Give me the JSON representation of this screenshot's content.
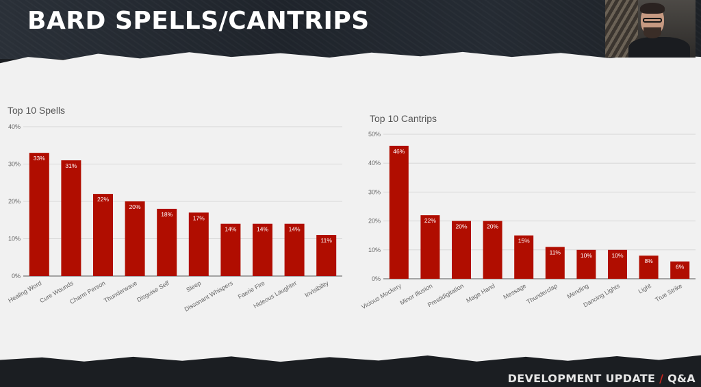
{
  "slide": {
    "title": "BARD SPELLS/CANTRIPS",
    "footer_main": "DEVELOPMENT UPDATE",
    "footer_sep": "/",
    "footer_tail": "Q&A"
  },
  "colors": {
    "bar": "#b00d00",
    "accent": "#c8231c"
  },
  "chart_data": [
    {
      "type": "bar",
      "title": "Top 10 Spells",
      "categories": [
        "Healing Word",
        "Cure Wounds",
        "Charm Person",
        "Thunderwave",
        "Disguise Self",
        "Sleep",
        "Dissonant Whispers",
        "Faerie Fire",
        "Hideous Laughter",
        "Invisibility"
      ],
      "values": [
        33,
        31,
        22,
        20,
        18,
        17,
        14,
        14,
        14,
        11
      ],
      "data_labels": [
        "33%",
        "31%",
        "22%",
        "20%",
        "18%",
        "17%",
        "14%",
        "14%",
        "14%",
        "11%"
      ],
      "ylim": [
        0,
        40
      ],
      "yticks": [
        "0%",
        "10%",
        "20%",
        "30%",
        "40%"
      ],
      "grid": true,
      "legend": "none"
    },
    {
      "type": "bar",
      "title": "Top 10 Cantrips",
      "categories": [
        "Vicious Mockery",
        "Minor Illusion",
        "Prestidigitation",
        "Mage Hand",
        "Message",
        "Thunderclap",
        "Mending",
        "Dancing Lights",
        "Light",
        "True Strike"
      ],
      "values": [
        46,
        22,
        20,
        20,
        15,
        11,
        10,
        10,
        8,
        6
      ],
      "data_labels": [
        "46%",
        "22%",
        "20%",
        "20%",
        "15%",
        "11%",
        "10%",
        "10%",
        "8%",
        "6%"
      ],
      "ylim": [
        0,
        50
      ],
      "yticks": [
        "0%",
        "10%",
        "20%",
        "30%",
        "40%",
        "50%"
      ],
      "grid": true,
      "legend": "none"
    }
  ]
}
